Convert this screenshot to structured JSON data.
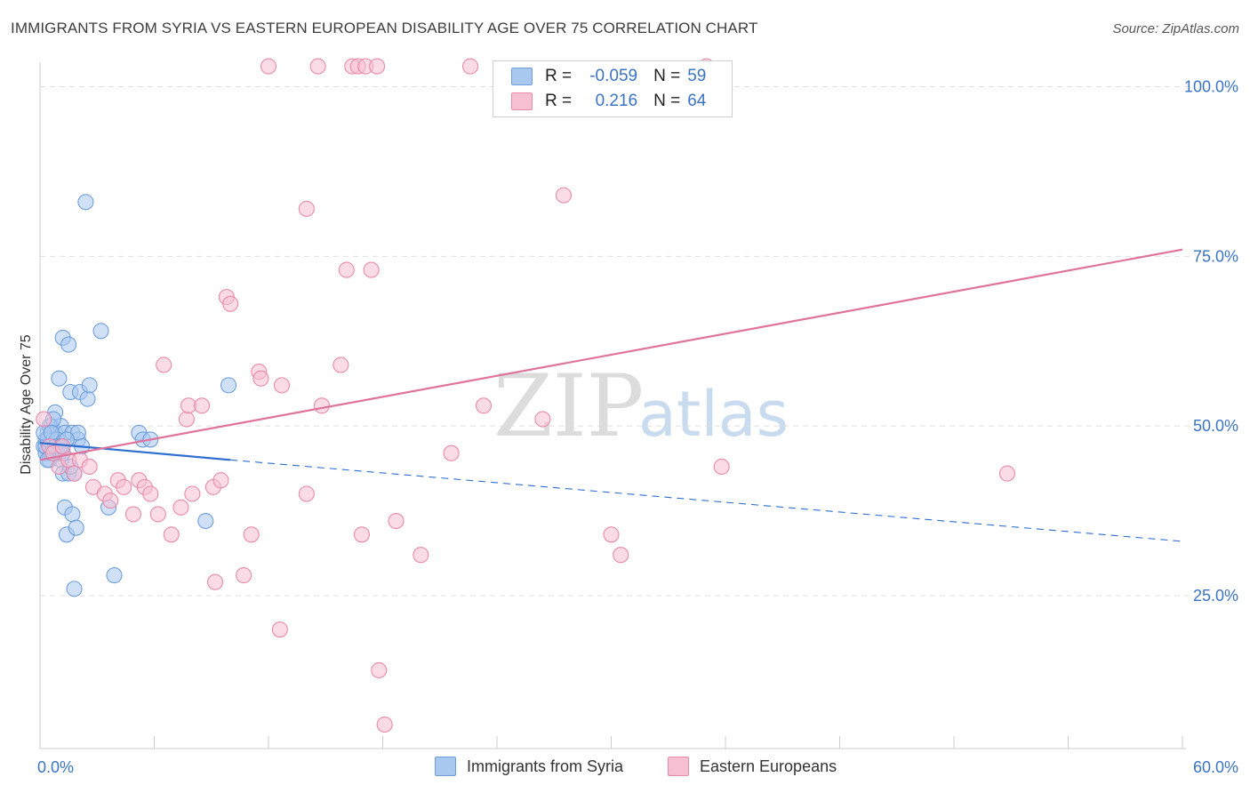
{
  "title": "IMMIGRANTS FROM SYRIA VS EASTERN EUROPEAN DISABILITY AGE OVER 75 CORRELATION CHART",
  "source": "Source: ZipAtlas.com",
  "watermark": {
    "zip": "ZIP",
    "atlas": "atlas"
  },
  "legend_box": {
    "rows": [
      {
        "r_label": "R =",
        "r_value": "-0.059",
        "n_label": "N =",
        "n_value": "59"
      },
      {
        "r_label": "R =",
        "r_value": "0.216",
        "n_label": "N =",
        "n_value": "64"
      }
    ]
  },
  "colors": {
    "blue_fill": "#a9c8f0",
    "blue_stroke": "#6f9fdb",
    "blue_line": "#2f6fcf",
    "pink_fill": "#f7bfd2",
    "pink_stroke": "#e88aaa",
    "pink_line": "#e0739b",
    "axis_text": "#3a73c4",
    "grid": "#e0e0e0"
  },
  "chart_data": {
    "type": "scatter",
    "title": "IMMIGRANTS FROM SYRIA VS EASTERN EUROPEAN DISABILITY AGE OVER 75 CORRELATION CHART",
    "xlabel": "",
    "ylabel": "Disability Age Over 75",
    "xlim": [
      0,
      60
    ],
    "ylim": [
      0,
      105
    ],
    "x_tick_labels": [
      "0.0%",
      "60.0%"
    ],
    "y_ticks": [
      25,
      50,
      75,
      100
    ],
    "y_tick_labels": [
      "25.0%",
      "50.0%",
      "75.0%",
      "100.0%"
    ],
    "legend_placement": "bottom-center",
    "series": [
      {
        "name": "Immigrants from Syria",
        "color": "blue",
        "R": -0.059,
        "N": 59,
        "trend": {
          "x0": 0,
          "y0": 47.5,
          "x1": 10,
          "y1": 45,
          "dash_x1": 60,
          "dash_y1": 33
        },
        "points": [
          [
            0.2,
            47
          ],
          [
            0.3,
            46
          ],
          [
            0.3,
            48
          ],
          [
            0.4,
            49
          ],
          [
            0.5,
            47
          ],
          [
            0.5,
            45
          ],
          [
            0.6,
            50
          ],
          [
            0.7,
            48
          ],
          [
            0.7,
            46
          ],
          [
            0.8,
            49
          ],
          [
            0.8,
            52
          ],
          [
            0.9,
            46
          ],
          [
            1.0,
            57
          ],
          [
            1.0,
            47
          ],
          [
            1.1,
            45
          ],
          [
            1.1,
            50
          ],
          [
            1.2,
            63
          ],
          [
            1.2,
            43
          ],
          [
            1.3,
            49
          ],
          [
            1.3,
            38
          ],
          [
            1.4,
            34
          ],
          [
            1.5,
            62
          ],
          [
            1.5,
            43
          ],
          [
            1.6,
            55
          ],
          [
            1.7,
            49
          ],
          [
            1.7,
            37
          ],
          [
            1.8,
            26
          ],
          [
            1.8,
            43
          ],
          [
            1.9,
            35
          ],
          [
            2.0,
            48
          ],
          [
            2.0,
            49
          ],
          [
            2.1,
            55
          ],
          [
            2.2,
            47
          ],
          [
            2.4,
            83
          ],
          [
            2.5,
            54
          ],
          [
            2.6,
            56
          ],
          [
            3.2,
            64
          ],
          [
            3.6,
            38
          ],
          [
            3.9,
            28
          ],
          [
            5.2,
            49
          ],
          [
            5.4,
            48
          ],
          [
            5.8,
            48
          ],
          [
            8.7,
            36
          ],
          [
            9.9,
            56
          ],
          [
            0.3,
            47
          ],
          [
            0.4,
            48
          ],
          [
            0.6,
            46
          ],
          [
            0.9,
            48
          ],
          [
            1.0,
            46
          ],
          [
            0.5,
            50
          ],
          [
            0.7,
            51
          ],
          [
            1.6,
            44
          ],
          [
            0.2,
            49
          ],
          [
            0.4,
            45
          ],
          [
            0.8,
            47
          ],
          [
            1.2,
            46
          ],
          [
            1.4,
            48
          ],
          [
            0.6,
            49
          ],
          [
            1.1,
            47
          ]
        ]
      },
      {
        "name": "Eastern Europeans",
        "color": "pink",
        "R": 0.216,
        "N": 64,
        "trend": {
          "x0": 0,
          "y0": 45,
          "x1": 60,
          "y1": 76
        },
        "points": [
          [
            0.2,
            51
          ],
          [
            0.5,
            47
          ],
          [
            0.7,
            46
          ],
          [
            1.0,
            44
          ],
          [
            1.2,
            47
          ],
          [
            1.5,
            45
          ],
          [
            1.8,
            43
          ],
          [
            2.1,
            45
          ],
          [
            2.6,
            44
          ],
          [
            2.8,
            41
          ],
          [
            3.4,
            40
          ],
          [
            3.7,
            39
          ],
          [
            4.1,
            42
          ],
          [
            4.4,
            41
          ],
          [
            4.9,
            37
          ],
          [
            5.2,
            42
          ],
          [
            5.5,
            41
          ],
          [
            5.8,
            40
          ],
          [
            6.2,
            37
          ],
          [
            6.5,
            59
          ],
          [
            6.9,
            34
          ],
          [
            7.4,
            38
          ],
          [
            7.7,
            51
          ],
          [
            7.8,
            53
          ],
          [
            8.0,
            40
          ],
          [
            8.5,
            53
          ],
          [
            9.1,
            41
          ],
          [
            9.2,
            27
          ],
          [
            9.5,
            42
          ],
          [
            9.8,
            69
          ],
          [
            10.0,
            68
          ],
          [
            10.7,
            28
          ],
          [
            11.1,
            34
          ],
          [
            11.5,
            58
          ],
          [
            11.6,
            57
          ],
          [
            12.0,
            103
          ],
          [
            12.6,
            20
          ],
          [
            12.7,
            56
          ],
          [
            14.0,
            82
          ],
          [
            14.6,
            103
          ],
          [
            14.8,
            53
          ],
          [
            15.8,
            59
          ],
          [
            16.1,
            73
          ],
          [
            16.4,
            103
          ],
          [
            16.7,
            103
          ],
          [
            16.9,
            34
          ],
          [
            17.1,
            103
          ],
          [
            17.4,
            73
          ],
          [
            17.7,
            103
          ],
          [
            17.8,
            14
          ],
          [
            18.1,
            6
          ],
          [
            18.7,
            36
          ],
          [
            20.0,
            31
          ],
          [
            21.6,
            46
          ],
          [
            22.6,
            103
          ],
          [
            23.3,
            53
          ],
          [
            26.4,
            51
          ],
          [
            27.5,
            84
          ],
          [
            30.0,
            34
          ],
          [
            30.5,
            31
          ],
          [
            35.0,
            103
          ],
          [
            35.8,
            44
          ],
          [
            50.8,
            43
          ],
          [
            14.0,
            40
          ]
        ]
      }
    ]
  },
  "bottom_legend": {
    "items": [
      {
        "label": "Immigrants from Syria"
      },
      {
        "label": "Eastern Europeans"
      }
    ]
  }
}
